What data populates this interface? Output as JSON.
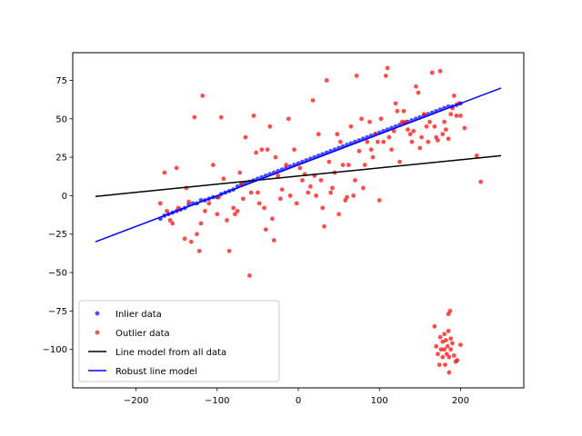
{
  "chart_data": {
    "type": "scatter",
    "title": "",
    "xlabel": "",
    "ylabel": "",
    "xlim": [
      -278,
      278
    ],
    "ylim": [
      -125,
      93
    ],
    "xticks": [
      -200,
      -100,
      0,
      100,
      200
    ],
    "xtick_labels": [
      "−200",
      "−100",
      "0",
      "100",
      "200"
    ],
    "yticks": [
      -100,
      -75,
      -50,
      -25,
      0,
      25,
      50,
      75
    ],
    "ytick_labels": [
      "−100",
      "−75",
      "−50",
      "−25",
      "0",
      "25",
      "50",
      "75"
    ],
    "grid": false,
    "legend_position": "lower-left",
    "series": [
      {
        "name": "Inlier data",
        "kind": "points",
        "color": "#0000ff",
        "points": [
          [
            -170,
            -15
          ],
          [
            -165,
            -13
          ],
          [
            -160,
            -12
          ],
          [
            -155,
            -11
          ],
          [
            -150,
            -10
          ],
          [
            -145,
            -9
          ],
          [
            -140,
            -8
          ],
          [
            -135,
            -6
          ],
          [
            -130,
            -5
          ],
          [
            -125,
            -5
          ],
          [
            -120,
            -3
          ],
          [
            -115,
            -3
          ],
          [
            -110,
            -2
          ],
          [
            -105,
            -1
          ],
          [
            -100,
            -1
          ],
          [
            -95,
            1
          ],
          [
            -90,
            2
          ],
          [
            -85,
            3
          ],
          [
            -80,
            4
          ],
          [
            -75,
            6
          ],
          [
            -70,
            7
          ],
          [
            -65,
            8
          ],
          [
            -60,
            9
          ],
          [
            -55,
            10
          ],
          [
            -50,
            11
          ],
          [
            -45,
            12
          ],
          [
            -40,
            13
          ],
          [
            -35,
            14
          ],
          [
            -30,
            15
          ],
          [
            -25,
            16
          ],
          [
            -20,
            17
          ],
          [
            -15,
            18
          ],
          [
            -10,
            19
          ],
          [
            -5,
            20
          ],
          [
            0,
            21
          ],
          [
            5,
            22
          ],
          [
            10,
            23
          ],
          [
            15,
            24
          ],
          [
            20,
            25
          ],
          [
            25,
            26
          ],
          [
            30,
            27
          ],
          [
            35,
            28
          ],
          [
            40,
            29
          ],
          [
            45,
            30
          ],
          [
            50,
            31
          ],
          [
            55,
            32
          ],
          [
            60,
            33
          ],
          [
            65,
            34
          ],
          [
            70,
            35
          ],
          [
            75,
            36
          ],
          [
            80,
            37
          ],
          [
            85,
            38
          ],
          [
            90,
            39
          ],
          [
            95,
            40
          ],
          [
            100,
            41
          ],
          [
            105,
            42
          ],
          [
            110,
            43
          ],
          [
            115,
            44
          ],
          [
            120,
            45
          ],
          [
            125,
            46
          ],
          [
            130,
            47
          ],
          [
            135,
            48
          ],
          [
            140,
            49
          ],
          [
            145,
            50
          ],
          [
            150,
            51
          ],
          [
            155,
            52
          ],
          [
            160,
            53
          ],
          [
            165,
            54
          ],
          [
            170,
            55
          ],
          [
            175,
            56
          ],
          [
            180,
            57
          ],
          [
            185,
            58
          ],
          [
            190,
            58
          ],
          [
            195,
            59
          ],
          [
            200,
            60
          ]
        ]
      },
      {
        "name": "Outlier data",
        "kind": "points",
        "color": "#ff0000",
        "points": [
          [
            -170,
            -5
          ],
          [
            -165,
            15
          ],
          [
            -162,
            -10
          ],
          [
            -158,
            -16
          ],
          [
            -155,
            -18
          ],
          [
            -150,
            18
          ],
          [
            -148,
            -8
          ],
          [
            -140,
            -28
          ],
          [
            -138,
            5
          ],
          [
            -135,
            -4
          ],
          [
            -132,
            -30
          ],
          [
            -128,
            51
          ],
          [
            -125,
            -25
          ],
          [
            -122,
            -36
          ],
          [
            -120,
            -18
          ],
          [
            -118,
            65
          ],
          [
            -115,
            -10
          ],
          [
            -110,
            -5
          ],
          [
            -105,
            20
          ],
          [
            -100,
            -12
          ],
          [
            -98,
            -1
          ],
          [
            -95,
            51
          ],
          [
            -92,
            11
          ],
          [
            -88,
            -16
          ],
          [
            -85,
            -36
          ],
          [
            -80,
            -8
          ],
          [
            -78,
            -12
          ],
          [
            -75,
            -10
          ],
          [
            -72,
            15
          ],
          [
            -70,
            8
          ],
          [
            -68,
            -2
          ],
          [
            -65,
            38
          ],
          [
            -60,
            -52
          ],
          [
            -58,
            2
          ],
          [
            -55,
            52
          ],
          [
            -52,
            28
          ],
          [
            -50,
            2
          ],
          [
            -48,
            -5
          ],
          [
            -45,
            30
          ],
          [
            -42,
            -8
          ],
          [
            -40,
            -22
          ],
          [
            -38,
            30
          ],
          [
            -35,
            45
          ],
          [
            -32,
            -15
          ],
          [
            -30,
            -29
          ],
          [
            -28,
            25
          ],
          [
            -25,
            13
          ],
          [
            -22,
            -2
          ],
          [
            -20,
            4
          ],
          [
            -15,
            20
          ],
          [
            -12,
            50
          ],
          [
            -10,
            0
          ],
          [
            -5,
            30
          ],
          [
            -2,
            -5
          ],
          [
            2,
            18
          ],
          [
            5,
            10
          ],
          [
            8,
            14
          ],
          [
            12,
            2
          ],
          [
            15,
            6
          ],
          [
            18,
            62
          ],
          [
            20,
            13
          ],
          [
            22,
            0
          ],
          [
            25,
            40
          ],
          [
            28,
            10
          ],
          [
            30,
            -8
          ],
          [
            32,
            -20
          ],
          [
            35,
            75
          ],
          [
            38,
            22
          ],
          [
            40,
            2
          ],
          [
            42,
            5
          ],
          [
            45,
            15
          ],
          [
            48,
            40
          ],
          [
            50,
            -12
          ],
          [
            52,
            35
          ],
          [
            55,
            20
          ],
          [
            58,
            -3
          ],
          [
            60,
            -1
          ],
          [
            62,
            20
          ],
          [
            65,
            45
          ],
          [
            68,
            0
          ],
          [
            70,
            10
          ],
          [
            72,
            78
          ],
          [
            75,
            29
          ],
          [
            78,
            50
          ],
          [
            80,
            5
          ],
          [
            82,
            20
          ],
          [
            85,
            35
          ],
          [
            88,
            48
          ],
          [
            90,
            30
          ],
          [
            92,
            25
          ],
          [
            95,
            40
          ],
          [
            98,
            35
          ],
          [
            100,
            -3
          ],
          [
            102,
            50
          ],
          [
            105,
            35
          ],
          [
            108,
            78
          ],
          [
            110,
            83
          ],
          [
            112,
            38
          ],
          [
            115,
            30
          ],
          [
            118,
            42
          ],
          [
            120,
            60
          ],
          [
            122,
            55
          ],
          [
            125,
            22
          ],
          [
            128,
            48
          ],
          [
            130,
            55
          ],
          [
            132,
            48
          ],
          [
            135,
            43
          ],
          [
            138,
            40
          ],
          [
            140,
            35
          ],
          [
            142,
            42
          ],
          [
            145,
            71
          ],
          [
            148,
            67
          ],
          [
            150,
            31
          ],
          [
            152,
            38
          ],
          [
            155,
            53
          ],
          [
            158,
            45
          ],
          [
            160,
            35
          ],
          [
            162,
            48
          ],
          [
            165,
            80
          ],
          [
            168,
            45
          ],
          [
            170,
            38
          ],
          [
            172,
            36
          ],
          [
            175,
            81
          ],
          [
            178,
            40
          ],
          [
            180,
            48
          ],
          [
            182,
            43
          ],
          [
            185,
            37
          ],
          [
            188,
            53
          ],
          [
            190,
            57
          ],
          [
            192,
            65
          ],
          [
            195,
            52
          ],
          [
            198,
            60
          ],
          [
            200,
            52
          ],
          [
            205,
            44
          ],
          [
            220,
            26
          ],
          [
            225,
            9
          ],
          [
            168,
            -85
          ],
          [
            170,
            -98
          ],
          [
            172,
            -103
          ],
          [
            174,
            -110
          ],
          [
            175,
            -92
          ],
          [
            176,
            -100
          ],
          [
            178,
            -95
          ],
          [
            178,
            -105
          ],
          [
            180,
            -90
          ],
          [
            180,
            -100
          ],
          [
            181,
            -110
          ],
          [
            182,
            -94
          ],
          [
            183,
            -103
          ],
          [
            184,
            -98
          ],
          [
            185,
            -77
          ],
          [
            185,
            -88
          ],
          [
            186,
            -105
          ],
          [
            186,
            -115
          ],
          [
            187,
            -75
          ],
          [
            188,
            -93
          ],
          [
            188,
            -100
          ],
          [
            190,
            -96
          ],
          [
            192,
            -104
          ],
          [
            194,
            -108
          ],
          [
            196,
            -107
          ],
          [
            200,
            -97
          ]
        ]
      },
      {
        "name": "Line model from all data",
        "kind": "line",
        "color": "#000000",
        "points": [
          [
            -250,
            -0.5
          ],
          [
            250,
            26
          ]
        ]
      },
      {
        "name": "Robust line model",
        "kind": "line",
        "color": "#0000ff",
        "points": [
          [
            -250,
            -30
          ],
          [
            250,
            70
          ]
        ]
      }
    ]
  }
}
